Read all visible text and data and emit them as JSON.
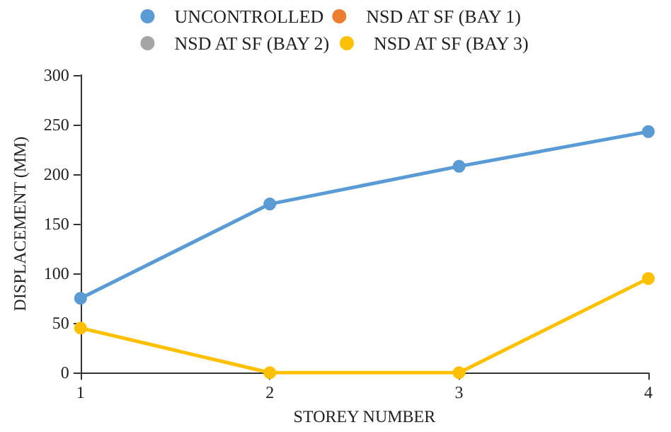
{
  "chart_data": {
    "type": "line",
    "xlabel": "STOREY NUMBER",
    "ylabel": "DISPLACEMENT (MM)",
    "x": [
      1,
      2,
      3,
      4
    ],
    "series": [
      {
        "name": "UNCONTROLLED",
        "color": "#5b9bd5",
        "values": [
          75,
          170,
          208,
          243
        ]
      },
      {
        "name": "NSD AT SF (BAY 1)",
        "color": "#ed7d31",
        "values": [
          null,
          null,
          null,
          null
        ]
      },
      {
        "name": "NSD AT SF (BAY 2)",
        "color": "#a5a5a5",
        "values": [
          null,
          null,
          null,
          null
        ]
      },
      {
        "name": "NSD AT SF (BAY 3)",
        "color": "#ffc000",
        "values": [
          45,
          0,
          0,
          95
        ]
      }
    ],
    "xlim": [
      1,
      4
    ],
    "xticks": [
      1,
      2,
      3,
      4
    ],
    "ylim": [
      0,
      300
    ],
    "yticks": [
      0,
      50,
      100,
      150,
      200,
      250,
      300
    ],
    "legend": "top",
    "grid": false,
    "marker": "circle",
    "line_style": "solid"
  }
}
